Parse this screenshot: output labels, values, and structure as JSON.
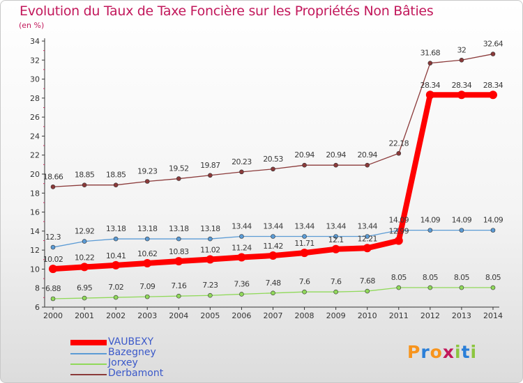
{
  "chart_data": {
    "type": "line",
    "title": "Evolution du Taux de Taxe Foncière sur les Propriétés Non Bâties",
    "unit": "(en %)",
    "xlabel": "",
    "ylabel": "",
    "categories": [
      "2000",
      "2001",
      "2002",
      "2003",
      "2004",
      "2005",
      "2006",
      "2007",
      "2008",
      "2009",
      "2010",
      "2011",
      "2012",
      "2013",
      "2014"
    ],
    "ylim": [
      6,
      34
    ],
    "yticks": [
      "6",
      "8",
      "10",
      "12",
      "14",
      "16",
      "18",
      "20",
      "22",
      "24",
      "26",
      "28",
      "30",
      "32",
      "34"
    ],
    "series": [
      {
        "name": "VAUBEXY",
        "color": "#ff0000",
        "values": [
          10.02,
          10.22,
          10.41,
          10.62,
          10.83,
          11.02,
          11.24,
          11.42,
          11.71,
          12.1,
          12.21,
          12.99,
          28.34,
          28.34,
          28.34
        ],
        "labels": [
          "10.02",
          "10.22",
          "10.41",
          "10.62",
          "10.83",
          "11.02",
          "11.24",
          "11.42",
          "11.71",
          "12.1",
          "12.21",
          "12.99",
          "28.34",
          "28.34",
          "28.34"
        ]
      },
      {
        "name": "Bazegney",
        "color": "#5b9bd5",
        "values": [
          12.3,
          12.92,
          13.18,
          13.18,
          13.18,
          13.18,
          13.44,
          13.44,
          13.44,
          13.44,
          13.44,
          14.09,
          14.09,
          14.09,
          14.09
        ],
        "labels": [
          "12.3",
          "12.92",
          "13.18",
          "13.18",
          "13.18",
          "13.18",
          "13.44",
          "13.44",
          "13.44",
          "13.44",
          "13.44",
          "14.09",
          "14.09",
          "14.09",
          "14.09"
        ]
      },
      {
        "name": "Jorxey",
        "color": "#90d95a",
        "values": [
          6.88,
          6.95,
          7.02,
          7.09,
          7.16,
          7.23,
          7.36,
          7.48,
          7.6,
          7.6,
          7.68,
          8.05,
          8.05,
          8.05,
          8.05
        ],
        "labels": [
          "6.88",
          "6.95",
          "7.02",
          "7.09",
          "7.16",
          "7.23",
          "7.36",
          "7.48",
          "7.6",
          "7.6",
          "7.68",
          "8.05",
          "8.05",
          "8.05",
          "8.05"
        ]
      },
      {
        "name": "Derbamont",
        "color": "#8b3a3a",
        "values": [
          18.66,
          18.85,
          18.85,
          19.23,
          19.52,
          19.87,
          20.23,
          20.53,
          20.94,
          20.94,
          20.94,
          22.18,
          31.68,
          32,
          32.64
        ],
        "labels": [
          "18.66",
          "18.85",
          "18.85",
          "19.23",
          "19.52",
          "19.87",
          "20.23",
          "20.53",
          "20.94",
          "20.94",
          "20.94",
          "22.18",
          "31.68",
          "32",
          "32.64"
        ]
      }
    ],
    "legend_position": "bottom-left"
  },
  "logo": {
    "text": "Proxiti",
    "letters": [
      "P",
      "r",
      "o",
      "x",
      "i",
      "t",
      "i"
    ],
    "colors": [
      "#f7941d",
      "#2b7fd8",
      "#f7941d",
      "#c2185b",
      "#8cc63f",
      "#2b7fd8",
      "#8cc63f"
    ]
  }
}
